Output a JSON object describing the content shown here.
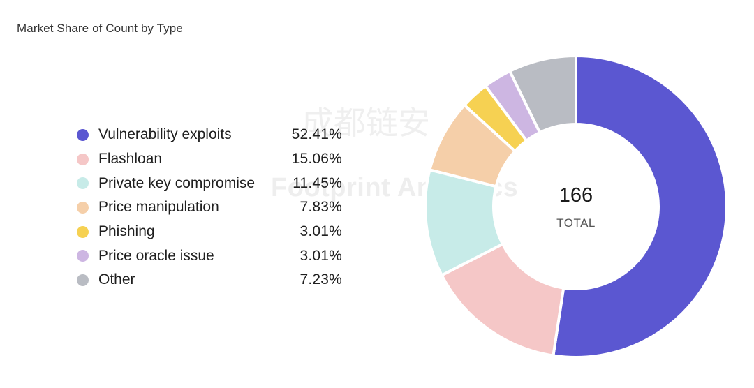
{
  "chart_data": {
    "type": "pie",
    "title": "Market Share of Count by Type",
    "categories": [
      "Vulnerability exploits",
      "Flashloan",
      "Private key compromise",
      "Price manipulation",
      "Phishing",
      "Price oracle issue",
      "Other"
    ],
    "values": [
      52.41,
      15.06,
      11.45,
      7.83,
      3.01,
      3.01,
      7.23
    ],
    "labels": [
      "52.41%",
      "15.06%",
      "11.45%",
      "7.83%",
      "3.01%",
      "3.01%",
      "7.23%"
    ],
    "colors": [
      "#5b57d1",
      "#f5c7c7",
      "#c7ebe8",
      "#f5cfa9",
      "#f6d152",
      "#cdb6e2",
      "#b9bcc3"
    ],
    "donut": true,
    "center_value": "166",
    "center_label": "TOTAL",
    "legend_position": "left"
  },
  "watermark": {
    "text_cn": "成都链安",
    "text_en": "Footprint Analytics"
  }
}
